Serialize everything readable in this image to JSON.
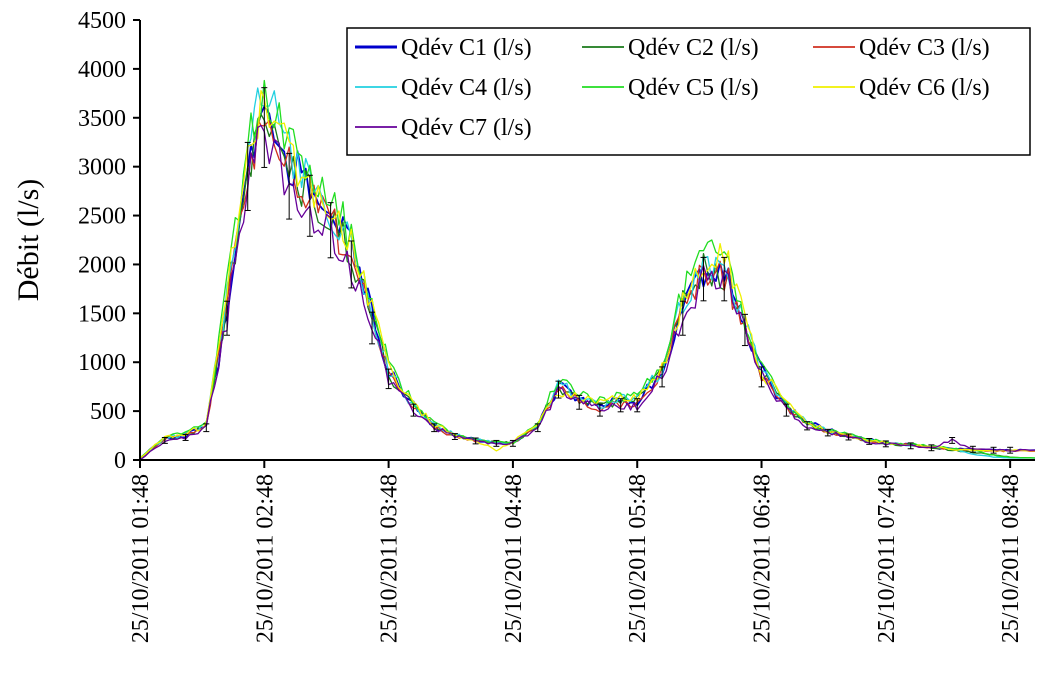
{
  "chart_data": {
    "type": "line",
    "title": "",
    "xlabel": "",
    "ylabel": "Débit (l/s)",
    "ylim": [
      0,
      4500
    ],
    "yticks": [
      0,
      500,
      1000,
      1500,
      2000,
      2500,
      3000,
      3500,
      4000,
      4500
    ],
    "xlim": [
      "25/10/2011 01:48",
      "25/10/2011 09:00"
    ],
    "xtick_labels": [
      "25/10/2011 01:48",
      "25/10/2011 02:48",
      "25/10/2011 03:48",
      "25/10/2011 04:48",
      "25/10/2011 05:48",
      "25/10/2011 06:48",
      "25/10/2011 07:48",
      "25/10/2011 08:48"
    ],
    "grid": false,
    "legend_position": "top-right",
    "error_bars_on": "Qdév C7 (l/s)",
    "x": [
      "01:48",
      "02:00",
      "02:10",
      "02:20",
      "02:30",
      "02:40",
      "02:48",
      "03:00",
      "03:10",
      "03:20",
      "03:30",
      "03:40",
      "03:48",
      "04:00",
      "04:10",
      "04:20",
      "04:30",
      "04:40",
      "04:48",
      "05:00",
      "05:10",
      "05:20",
      "05:30",
      "05:40",
      "05:48",
      "06:00",
      "06:10",
      "06:20",
      "06:30",
      "06:40",
      "06:48",
      "07:00",
      "07:10",
      "07:20",
      "07:30",
      "07:40",
      "07:48",
      "08:00",
      "08:10",
      "08:20",
      "08:30",
      "08:40",
      "08:48",
      "09:00"
    ],
    "series": [
      {
        "name": "Qdév C1 (l/s)",
        "color": "#0000cc",
        "values": [
          20,
          220,
          250,
          350,
          1500,
          3000,
          3550,
          3000,
          2750,
          2500,
          2150,
          1500,
          900,
          550,
          350,
          250,
          200,
          175,
          175,
          350,
          750,
          620,
          550,
          600,
          600,
          900,
          1550,
          1950,
          1950,
          1400,
          900,
          550,
          380,
          300,
          250,
          200,
          175,
          150,
          130,
          110,
          110,
          100,
          100,
          100
        ]
      },
      {
        "name": "Qdév C2 (l/s)",
        "color": "#1a7a1a",
        "values": [
          20,
          220,
          250,
          360,
          1600,
          3050,
          3500,
          3000,
          2700,
          2450,
          2100,
          1450,
          880,
          540,
          340,
          250,
          200,
          175,
          175,
          360,
          760,
          630,
          560,
          610,
          610,
          920,
          1600,
          1950,
          1900,
          1380,
          880,
          540,
          370,
          290,
          240,
          195,
          170,
          150,
          130,
          100,
          80,
          50,
          30,
          20
        ]
      },
      {
        "name": "Qdév C3 (l/s)",
        "color": "#d03020",
        "values": [
          20,
          220,
          250,
          350,
          1550,
          3000,
          3500,
          2950,
          2700,
          2450,
          2100,
          1450,
          870,
          530,
          340,
          245,
          200,
          175,
          175,
          350,
          740,
          610,
          540,
          590,
          590,
          890,
          1550,
          1900,
          1900,
          1380,
          880,
          540,
          370,
          290,
          245,
          195,
          170,
          150,
          130,
          110,
          100,
          95,
          90,
          90
        ]
      },
      {
        "name": "Qdév C4 (l/s)",
        "color": "#22d0e0",
        "values": [
          20,
          230,
          260,
          370,
          1650,
          3200,
          3800,
          3100,
          2850,
          2550,
          2200,
          1550,
          920,
          560,
          360,
          255,
          205,
          175,
          175,
          360,
          780,
          640,
          570,
          620,
          620,
          930,
          1620,
          2000,
          2000,
          1420,
          900,
          560,
          380,
          300,
          250,
          200,
          175,
          155,
          130,
          120,
          60,
          30,
          20,
          20
        ]
      },
      {
        "name": "Qdév C5 (l/s)",
        "color": "#22dd22",
        "values": [
          20,
          240,
          270,
          380,
          1750,
          3250,
          3650,
          3250,
          2950,
          2650,
          2300,
          1650,
          950,
          580,
          370,
          260,
          210,
          180,
          180,
          380,
          820,
          680,
          600,
          650,
          650,
          980,
          1700,
          2100,
          2050,
          1450,
          920,
          580,
          390,
          310,
          260,
          205,
          180,
          160,
          140,
          120,
          100,
          50,
          30,
          20
        ]
      },
      {
        "name": "Qdév C6 (l/s)",
        "color": "#f0f000",
        "values": [
          20,
          230,
          260,
          370,
          1700,
          3200,
          3700,
          3150,
          2850,
          2600,
          2250,
          1600,
          930,
          570,
          360,
          255,
          205,
          100,
          180,
          370,
          700,
          650,
          580,
          630,
          630,
          950,
          1650,
          2100,
          2100,
          1450,
          910,
          570,
          380,
          300,
          255,
          205,
          175,
          155,
          140,
          110,
          100,
          95,
          95,
          95
        ]
      },
      {
        "name": "Qdév C7 (l/s)",
        "color": "#660099",
        "values": [
          0,
          200,
          230,
          330,
          1450,
          2900,
          3400,
          2800,
          2600,
          2350,
          2000,
          1350,
          830,
          510,
          330,
          240,
          195,
          170,
          170,
          330,
          720,
          590,
          510,
          560,
          560,
          850,
          1450,
          1850,
          1850,
          1330,
          850,
          510,
          350,
          280,
          235,
          190,
          165,
          145,
          125,
          200,
          110,
          100,
          100,
          100
        ]
      }
    ]
  }
}
